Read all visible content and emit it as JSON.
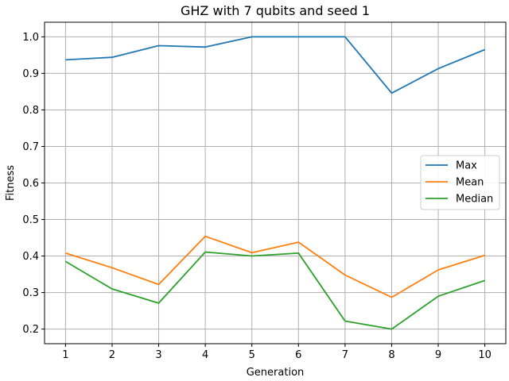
{
  "chart_data": {
    "type": "line",
    "title": "GHZ with 7 qubits and seed 1",
    "xlabel": "Generation",
    "ylabel": "Fitness",
    "x": [
      1,
      2,
      3,
      4,
      5,
      6,
      7,
      8,
      9,
      10
    ],
    "xlim": [
      0.55,
      10.45
    ],
    "ylim": [
      0.16,
      1.04
    ],
    "xticks": [
      1,
      2,
      3,
      4,
      5,
      6,
      7,
      8,
      9,
      10
    ],
    "yticks": [
      0.2,
      0.3,
      0.4,
      0.5,
      0.6,
      0.7,
      0.8,
      0.9,
      1.0
    ],
    "ytick_labels": [
      "0.2",
      "0.3",
      "0.4",
      "0.5",
      "0.6",
      "0.7",
      "0.8",
      "0.9",
      "1.0"
    ],
    "grid": true,
    "legend_position": "center-right",
    "series": [
      {
        "name": "Max",
        "color": "#1f77b4",
        "values": [
          0.937,
          0.944,
          0.976,
          0.972,
          1.0,
          1.0,
          1.0,
          0.846,
          0.913,
          0.965
        ]
      },
      {
        "name": "Mean",
        "color": "#ff7f0e",
        "values": [
          0.408,
          0.368,
          0.322,
          0.454,
          0.409,
          0.438,
          0.348,
          0.287,
          0.362,
          0.402
        ]
      },
      {
        "name": "Median",
        "color": "#2ca02c",
        "values": [
          0.385,
          0.31,
          0.271,
          0.411,
          0.4,
          0.408,
          0.222,
          0.2,
          0.29,
          0.333
        ]
      }
    ]
  }
}
